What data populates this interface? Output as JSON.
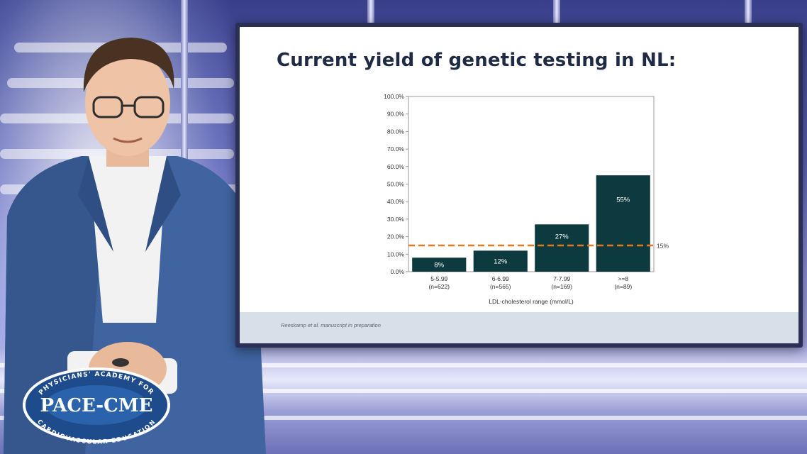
{
  "slide": {
    "title": "Current yield of genetic testing in NL:",
    "footnote": "Reeskamp et al. manuscript in preparation"
  },
  "logo": {
    "top_arc_text": "PHYSICIANS' ACADEMY FOR",
    "name": "PACE-CME",
    "bottom_arc_text": "CARDIOVASCULAR EDUCATION"
  },
  "colors": {
    "bar": "#0d3a3f",
    "reference_line": "#e07a22",
    "slide_title": "#1f2a44",
    "footer_bar": "#d7e0e8"
  },
  "chart_data": {
    "type": "bar",
    "title": "",
    "xlabel": "LDL-cholesterol range (mmol/L)",
    "ylabel": "",
    "ylim": [
      0,
      100
    ],
    "yticks": [
      "0.0%",
      "10.0%",
      "20.0%",
      "30.0%",
      "40.0%",
      "50.0%",
      "60.0%",
      "70.0%",
      "80.0%",
      "90.0%",
      "100.0%"
    ],
    "categories": [
      {
        "label": "5-5.99",
        "sublabel": "(n=622)"
      },
      {
        "label": "6-6.99",
        "sublabel": "(n=565)"
      },
      {
        "label": "7-7.99",
        "sublabel": "(n=169)"
      },
      {
        "label": ">=8",
        "sublabel": "(n=89)"
      }
    ],
    "values": [
      8,
      12,
      27,
      55
    ],
    "data_labels": [
      "8%",
      "12%",
      "27%",
      "55%"
    ],
    "reference_line": {
      "value": 15,
      "label": "15%",
      "style": "dashed"
    },
    "grid": false,
    "legend": "none"
  }
}
